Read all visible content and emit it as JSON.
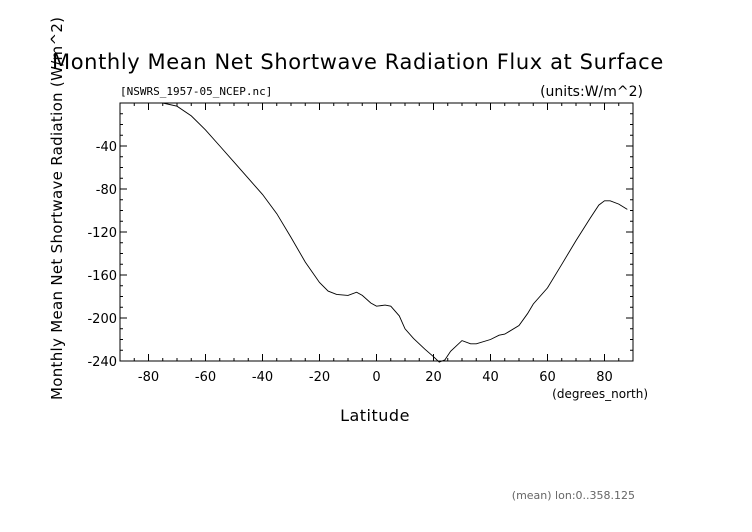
{
  "chart_data": {
    "type": "line",
    "title": "Monthly Mean Net Shortwave Radiation Flux at Surface",
    "subtitle_left": "[NSWRS_1957-05_NCEP.nc]",
    "subtitle_right": "(units:W/m^2)",
    "ylabel": "Monthly Mean Net Shortwave Radiation (W/m^2)",
    "xlabel": "Latitude",
    "x_units": "(degrees_north)",
    "footer": "(mean) lon:0..358.125",
    "xlim": [
      -90,
      90
    ],
    "ylim": [
      -240,
      0
    ],
    "x_ticks": [
      -80,
      -60,
      -40,
      -20,
      0,
      20,
      40,
      60,
      80
    ],
    "x_tick_labels": [
      "-80",
      "-60",
      "-40",
      "-20",
      "0",
      "20",
      "40",
      "60",
      "80"
    ],
    "y_ticks": [
      -40,
      -80,
      -120,
      -160,
      -200,
      -240
    ],
    "y_tick_labels": [
      "-40",
      "-80",
      "-120",
      "-160",
      "-200",
      "-240"
    ],
    "series": [
      {
        "x": [
          -88,
          -80,
          -75,
          -70,
          -65,
          -60,
          -55,
          -50,
          -45,
          -40,
          -35,
          -30,
          -25,
          -20,
          -17,
          -14,
          -10,
          -7,
          -5,
          -2,
          0,
          3,
          5,
          8,
          10,
          13,
          17,
          20,
          22,
          24,
          26,
          28,
          30,
          33,
          35,
          40,
          43,
          45,
          50,
          53,
          55,
          60,
          65,
          70,
          75,
          78,
          80,
          82,
          85,
          88
        ],
        "y": [
          0,
          0,
          0,
          -3,
          -12,
          -25,
          -40,
          -55,
          -70,
          -85,
          -103,
          -125,
          -148,
          -167,
          -175,
          -178,
          -179,
          -176,
          -179,
          -186,
          -189,
          -188,
          -189,
          -198,
          -210,
          -219,
          -229,
          -236,
          -241,
          -239,
          -231,
          -226,
          -221,
          -224,
          -224,
          -220,
          -216,
          -215,
          -207,
          -196,
          -187,
          -172,
          -150,
          -128,
          -107,
          -95,
          -91,
          -91,
          -94,
          -99
        ]
      }
    ]
  }
}
